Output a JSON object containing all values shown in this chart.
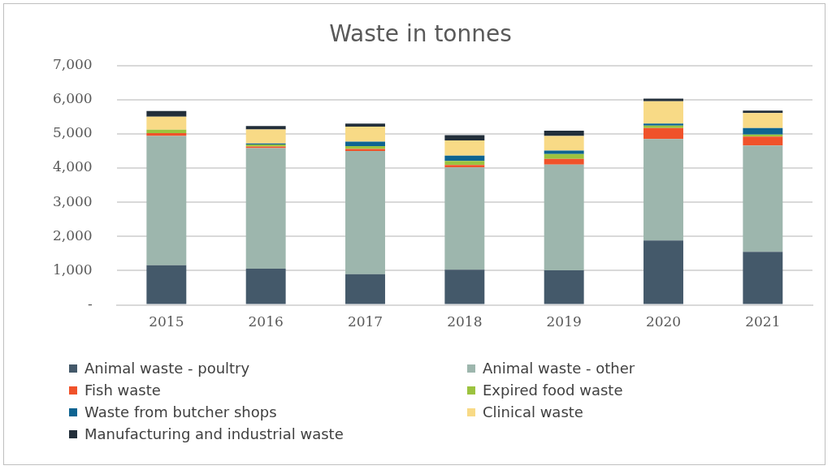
{
  "chart_data": {
    "type": "bar",
    "title": "Waste in tonnes",
    "stacked": true,
    "grid": "y",
    "legend": "bottom",
    "categories": [
      "2015",
      "2016",
      "2017",
      "2018",
      "2019",
      "2020",
      "2021"
    ],
    "ylim": [
      0,
      7000
    ],
    "yticks": [
      {
        "value": 0,
        "label": "-"
      },
      {
        "value": 1000,
        "label": "1,000"
      },
      {
        "value": 2000,
        "label": "2,000"
      },
      {
        "value": 3000,
        "label": "3,000"
      },
      {
        "value": 4000,
        "label": "4,000"
      },
      {
        "value": 5000,
        "label": "5,000"
      },
      {
        "value": 6000,
        "label": "6,000"
      },
      {
        "value": 7000,
        "label": "7,000"
      }
    ],
    "series": [
      {
        "name": "Animal waste - poultry",
        "color": "#44596a",
        "values": [
          1160,
          1060,
          900,
          1030,
          1010,
          1880,
          1550
        ]
      },
      {
        "name": "Animal waste - other",
        "color": "#9db6ad",
        "values": [
          3780,
          3520,
          3600,
          2990,
          3090,
          2970,
          3110
        ]
      },
      {
        "name": "Fish waste",
        "color": "#f0522a",
        "values": [
          80,
          50,
          60,
          70,
          170,
          320,
          260
        ]
      },
      {
        "name": "Expired food waste",
        "color": "#9cc33f",
        "values": [
          100,
          60,
          80,
          120,
          140,
          70,
          60
        ]
      },
      {
        "name": "Waste from butcher shops",
        "color": "#0e6491",
        "values": [
          0,
          30,
          130,
          150,
          100,
          60,
          190
        ]
      },
      {
        "name": "Clinical waste",
        "color": "#f8da86",
        "values": [
          380,
          410,
          440,
          450,
          430,
          650,
          440
        ]
      },
      {
        "name": "Manufacturing and industrial waste",
        "color": "#232f3a",
        "values": [
          170,
          100,
          90,
          150,
          150,
          80,
          70
        ]
      }
    ]
  }
}
